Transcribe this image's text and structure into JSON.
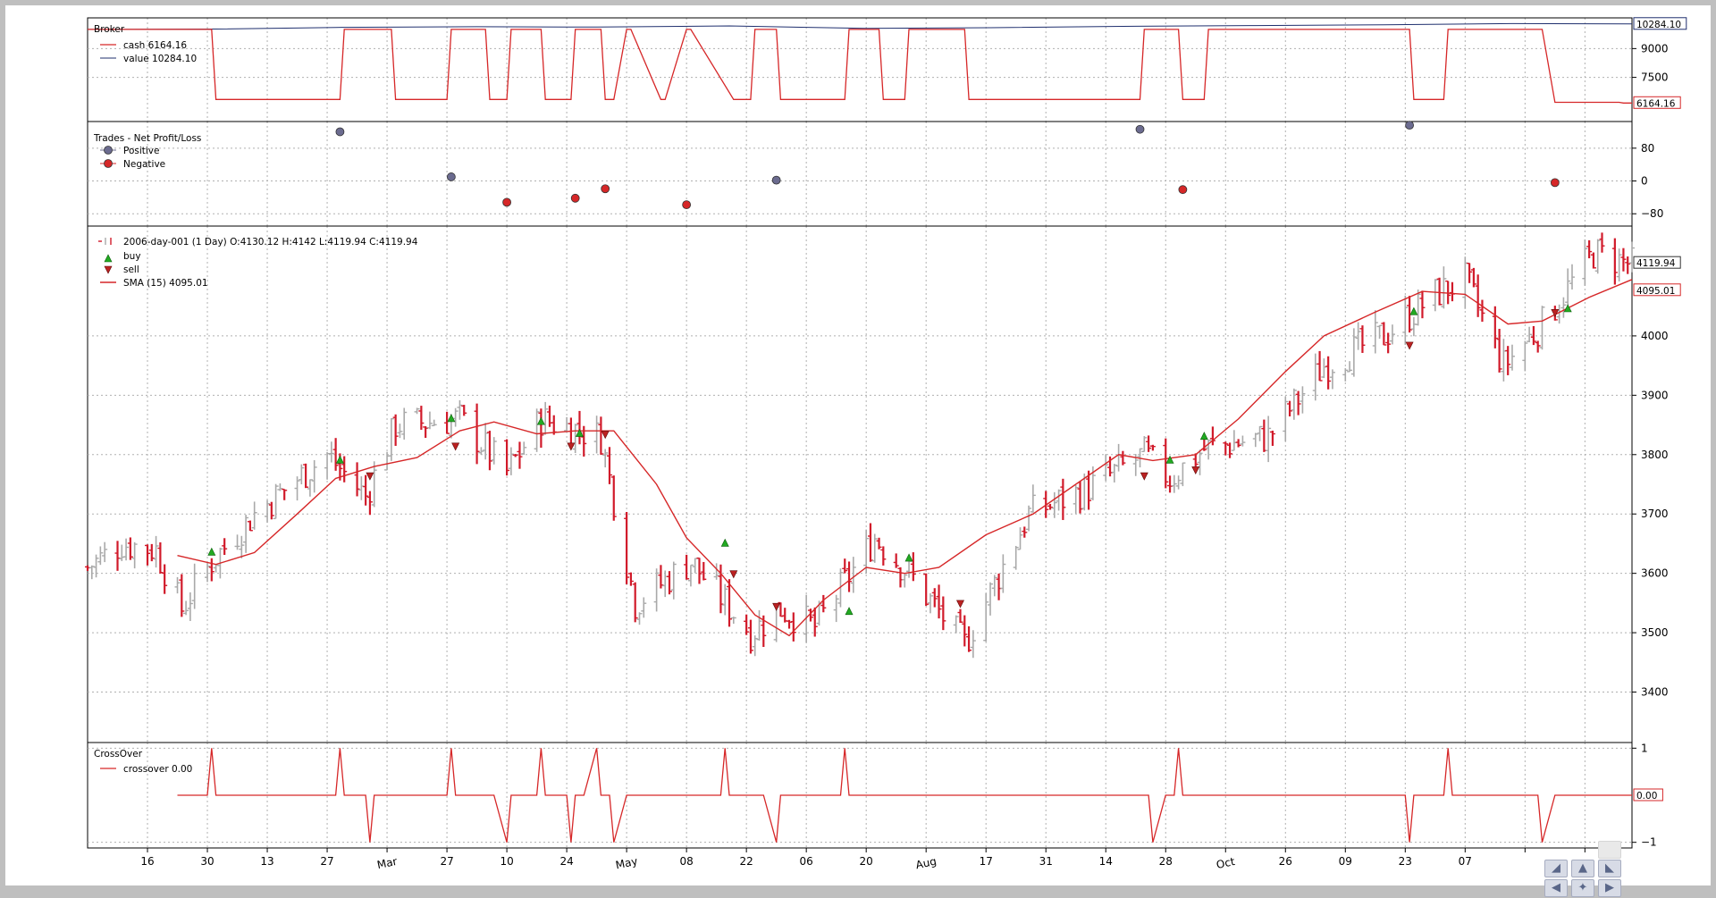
{
  "chart_data": [
    {
      "type": "line",
      "panel": "broker",
      "title": "Broker",
      "y_ticks": [
        7500,
        9000
      ],
      "ylim": [
        5200,
        10600
      ],
      "series": [
        {
          "name": "cash",
          "legend": "cash 6164.16",
          "color": "#d62728",
          "last_label": "6164.16",
          "x": [
            "2006-01-02",
            "2006-01-31",
            "2006-02-01",
            "2006-03-02",
            "2006-03-03",
            "2006-03-14",
            "2006-03-15",
            "2006-03-27",
            "2006-03-28",
            "2006-04-05",
            "2006-04-06",
            "2006-04-10",
            "2006-04-11",
            "2006-04-18",
            "2006-04-19",
            "2006-04-25",
            "2006-04-26",
            "2006-05-02",
            "2006-05-03",
            "2006-05-05",
            "2006-05-08",
            "2006-05-09",
            "2006-05-16",
            "2006-05-17",
            "2006-05-22",
            "2006-05-23",
            "2006-06-02",
            "2006-06-06",
            "2006-06-07",
            "2006-06-12",
            "2006-06-13",
            "2006-06-28",
            "2006-06-29",
            "2006-07-06",
            "2006-07-07",
            "2006-07-12",
            "2006-07-13",
            "2006-07-26",
            "2006-07-27",
            "2006-09-05",
            "2006-09-06",
            "2006-09-14",
            "2006-09-15",
            "2006-09-20",
            "2006-09-21",
            "2006-11-07",
            "2006-11-08",
            "2006-11-15",
            "2006-11-16",
            "2006-12-08",
            "2006-12-11",
            "2006-12-26",
            "2006-12-27",
            "2006-12-29"
          ],
          "values": [
            10000,
            10000,
            6350,
            6350,
            10000,
            10000,
            6350,
            6350,
            10000,
            10000,
            6350,
            6350,
            10000,
            10000,
            6350,
            6350,
            10000,
            10000,
            6350,
            6350,
            10000,
            10000,
            6350,
            6350,
            10000,
            10000,
            6350,
            6350,
            10000,
            10000,
            6350,
            6350,
            10000,
            10000,
            6350,
            6350,
            10000,
            10000,
            6350,
            6350,
            10000,
            10000,
            6350,
            6350,
            10000,
            10000,
            6350,
            6350,
            10000,
            10000,
            6200,
            6200,
            6164.16,
            6164.16
          ]
        },
        {
          "name": "value",
          "legend": "value 10284.10",
          "color": "#1f2f6e",
          "last_label": "10284.10",
          "x": [
            "2006-01-02",
            "2006-02-01",
            "2006-03-01",
            "2006-04-03",
            "2006-05-01",
            "2006-06-01",
            "2006-07-03",
            "2006-08-01",
            "2006-09-01",
            "2006-10-02",
            "2006-11-01",
            "2006-12-01",
            "2006-12-29"
          ],
          "values": [
            10000,
            10020,
            10100,
            10140,
            10120,
            10180,
            10050,
            10090,
            10160,
            10200,
            10240,
            10300,
            10284.1
          ]
        }
      ]
    },
    {
      "type": "scatter",
      "panel": "trades",
      "title": "Trades - Net Profit/Loss",
      "y_ticks": [
        80,
        0,
        -80
      ],
      "ylim": [
        -110,
        145
      ],
      "series": [
        {
          "name": "Positive",
          "color": "#6b6b8f",
          "x": [
            "2006-03-02",
            "2006-03-28",
            "2006-06-12",
            "2006-09-05",
            "2006-11-07"
          ],
          "values": [
            120,
            10,
            2,
            126,
            136
          ]
        },
        {
          "name": "Negative",
          "color": "#d62728",
          "x": [
            "2006-04-10",
            "2006-04-26",
            "2006-05-03",
            "2006-05-22",
            "2006-09-15",
            "2006-12-11"
          ],
          "values": [
            -52,
            -42,
            -19,
            -58,
            -21,
            -4
          ]
        }
      ]
    },
    {
      "type": "ohlc",
      "panel": "price",
      "title": "2006-day-001 (1 Day) O:4130.12 H:4142 L:4119.94 C:4119.94",
      "legend": [
        {
          "name": "buy",
          "color": "#22aa22"
        },
        {
          "name": "sell",
          "color": "#bb2222"
        },
        {
          "name": "SMA (15) 4095.01",
          "color": "#d62728"
        }
      ],
      "y_ticks": [
        3400,
        3500,
        3600,
        3700,
        3800,
        3900,
        4000
      ],
      "ylim": [
        3315,
        4185
      ],
      "last_price_label": "4119.94",
      "sma_label": "4095.01",
      "close_key_x": [
        "2006-01-02",
        "2006-01-10",
        "2006-01-18",
        "2006-01-24",
        "2006-01-31",
        "2006-02-10",
        "2006-02-27",
        "2006-03-08",
        "2006-03-15",
        "2006-03-30",
        "2006-04-10",
        "2006-04-18",
        "2006-05-02",
        "2006-05-10",
        "2006-05-23",
        "2006-06-06",
        "2006-06-13",
        "2006-06-21",
        "2006-07-05",
        "2006-07-13",
        "2006-07-26",
        "2006-08-10",
        "2006-08-23",
        "2006-09-06",
        "2006-09-12",
        "2006-09-20",
        "2006-10-05",
        "2006-10-18",
        "2006-11-01",
        "2006-11-13",
        "2006-11-20",
        "2006-11-29",
        "2006-12-08",
        "2006-12-20",
        "2006-12-29"
      ],
      "close_key_values": [
        3610,
        3650,
        3640,
        3540,
        3620,
        3700,
        3800,
        3730,
        3850,
        3860,
        3770,
        3860,
        3830,
        3550,
        3620,
        3500,
        3540,
        3510,
        3660,
        3600,
        3480,
        3700,
        3740,
        3800,
        3760,
        3810,
        3830,
        3950,
        4000,
        4070,
        4095,
        3950,
        4020,
        4140,
        4120
      ],
      "sma_x": [
        "2006-01-23",
        "2006-02-01",
        "2006-02-10",
        "2006-02-20",
        "2006-03-01",
        "2006-03-10",
        "2006-03-20",
        "2006-03-30",
        "2006-04-07",
        "2006-04-17",
        "2006-04-26",
        "2006-05-05",
        "2006-05-15",
        "2006-05-22",
        "2006-05-30",
        "2006-06-07",
        "2006-06-15",
        "2006-06-23",
        "2006-07-03",
        "2006-07-12",
        "2006-07-20",
        "2006-07-31",
        "2006-08-11",
        "2006-08-21",
        "2006-08-31",
        "2006-09-08",
        "2006-09-18",
        "2006-09-28",
        "2006-10-09",
        "2006-10-18",
        "2006-10-30",
        "2006-11-10",
        "2006-11-20",
        "2006-11-30",
        "2006-12-08",
        "2006-12-19",
        "2006-12-29"
      ],
      "sma_values": [
        3630,
        3615,
        3635,
        3700,
        3760,
        3780,
        3795,
        3840,
        3855,
        3835,
        3840,
        3840,
        3750,
        3660,
        3600,
        3530,
        3495,
        3555,
        3610,
        3600,
        3610,
        3665,
        3700,
        3750,
        3800,
        3790,
        3800,
        3860,
        3940,
        4000,
        4040,
        4075,
        4070,
        4020,
        4025,
        4065,
        4095.01
      ],
      "buy_markers": {
        "x": [
          "2006-01-31",
          "2006-03-02",
          "2006-03-28",
          "2006-04-18",
          "2006-04-27",
          "2006-05-31",
          "2006-06-29",
          "2006-07-13",
          "2006-09-12",
          "2006-09-20",
          "2006-11-08",
          "2006-12-14"
        ],
        "values": [
          3635,
          3790,
          3860,
          3855,
          3835,
          3650,
          3535,
          3625,
          3790,
          3830,
          4040,
          4045
        ]
      },
      "sell_markers": {
        "x": [
          "2006-03-09",
          "2006-03-29",
          "2006-04-25",
          "2006-05-03",
          "2006-06-02",
          "2006-06-12",
          "2006-07-25",
          "2006-09-06",
          "2006-09-18",
          "2006-11-07",
          "2006-12-11"
        ],
        "values": [
          3765,
          3815,
          3815,
          3835,
          3600,
          3545,
          3550,
          3765,
          3775,
          3985,
          4040
        ]
      }
    },
    {
      "type": "line",
      "panel": "crossover",
      "title": "CrossOver",
      "legend": "crossover 0.00",
      "color": "#d62728",
      "y_ticks": [
        1,
        -1
      ],
      "ylim": [
        -1.12,
        1.12
      ],
      "last_label": "0.00",
      "x": [
        "2006-01-23",
        "2006-01-30",
        "2006-01-31",
        "2006-02-01",
        "2006-03-01",
        "2006-03-02",
        "2006-03-03",
        "2006-03-08",
        "2006-03-09",
        "2006-03-10",
        "2006-03-27",
        "2006-03-28",
        "2006-03-29",
        "2006-04-07",
        "2006-04-10",
        "2006-04-11",
        "2006-04-17",
        "2006-04-18",
        "2006-04-19",
        "2006-04-24",
        "2006-04-25",
        "2006-04-26",
        "2006-04-28",
        "2006-05-01",
        "2006-05-02",
        "2006-05-04",
        "2006-05-05",
        "2006-05-08",
        "2006-05-30",
        "2006-05-31",
        "2006-06-01",
        "2006-06-09",
        "2006-06-12",
        "2006-06-13",
        "2006-06-27",
        "2006-06-28",
        "2006-06-29",
        "2006-09-07",
        "2006-09-08",
        "2006-09-11",
        "2006-09-13",
        "2006-09-14",
        "2006-09-15",
        "2006-11-06",
        "2006-11-07",
        "2006-11-08",
        "2006-11-15",
        "2006-11-16",
        "2006-11-17",
        "2006-12-07",
        "2006-12-08",
        "2006-12-11",
        "2006-12-29"
      ],
      "values": [
        0,
        0,
        1,
        0,
        0,
        1,
        0,
        0,
        -1,
        0,
        0,
        1,
        0,
        0,
        -1,
        0,
        0,
        1,
        0,
        0,
        -1,
        0,
        0,
        1,
        0,
        0,
        -1,
        0,
        0,
        1,
        0,
        0,
        -1,
        0,
        0,
        1,
        0,
        0,
        -1,
        0,
        0,
        1,
        0,
        0,
        -1,
        0,
        0,
        1,
        0,
        0,
        -1,
        0,
        0
      ]
    }
  ],
  "x_axis": {
    "start": "2006-01-02",
    "end": "2006-12-29",
    "tick_dates": [
      "2006-01-16",
      "2006-01-30",
      "2006-02-13",
      "2006-02-27",
      "2006-03-13",
      "2006-03-27",
      "2006-04-10",
      "2006-04-24",
      "2006-05-08",
      "2006-05-22",
      "2006-06-05",
      "2006-06-19",
      "2006-07-03",
      "2006-07-17",
      "2006-07-31",
      "2006-08-14",
      "2006-08-28",
      "2006-09-11",
      "2006-09-25",
      "2006-10-09",
      "2006-10-23",
      "2006-11-06",
      "2006-11-20",
      "2006-12-04",
      "2006-12-18"
    ],
    "tick_labels": [
      "16",
      "30",
      "13",
      "27",
      "Mar",
      "27",
      "10",
      "24",
      "May",
      "08",
      "22",
      "06",
      "20",
      "Aug",
      "17",
      "31",
      "14",
      "28",
      "Oct",
      "26",
      "09",
      "23",
      "07",
      "",
      ""
    ],
    "rotated_labels": [
      "Mar",
      "May",
      "Aug",
      "Oct"
    ]
  },
  "toolbar": {
    "buttons": [
      {
        "name": "back",
        "icon": "arrow-back-icon"
      },
      {
        "name": "home",
        "icon": "home-icon"
      },
      {
        "name": "forward",
        "icon": "arrow-forward-icon"
      },
      {
        "name": "pan",
        "icon": "pan-icon"
      },
      {
        "name": "zoom",
        "icon": "zoom-icon"
      },
      {
        "name": "save",
        "icon": "save-icon"
      }
    ]
  }
}
